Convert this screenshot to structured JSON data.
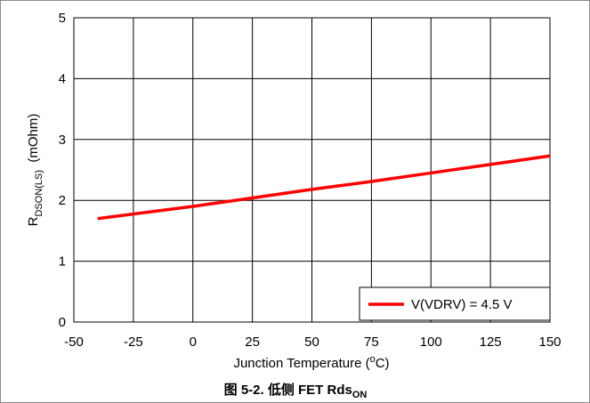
{
  "chart_data": {
    "type": "line",
    "title": "",
    "xlabel": "Junction Temperature (°C)",
    "xlabel_parts": {
      "before": "Junction Temperature (",
      "sup": "o",
      "after": "C)"
    },
    "ylabel": "R DSON(LS) (mOhm)",
    "ylabel_parts": {
      "main": "R",
      "sub": "DSON(LS)",
      "unit": "  (mOhm)"
    },
    "xlim": [
      -50,
      150
    ],
    "ylim": [
      0,
      5
    ],
    "x_ticks": [
      -50,
      -25,
      0,
      25,
      50,
      75,
      100,
      125,
      150
    ],
    "x_tick_labels": [
      "-50",
      "-25",
      "0",
      "25",
      "50",
      "75",
      "100",
      "125",
      "150"
    ],
    "y_ticks": [
      0,
      1,
      2,
      3,
      4,
      5
    ],
    "y_tick_labels": [
      "0",
      "1",
      "2",
      "3",
      "4",
      "5"
    ],
    "grid": true,
    "legend_position": "bottom-right",
    "series": [
      {
        "name": "V(VDRV) = 4.5 V",
        "color": "#ff0000",
        "x": [
          -40,
          0,
          25,
          50,
          75,
          100,
          125,
          150
        ],
        "y": [
          1.7,
          1.9,
          2.04,
          2.18,
          2.31,
          2.45,
          2.59,
          2.73
        ]
      }
    ]
  },
  "caption": {
    "prefix": "图 5-2. 低侧 FET Rds",
    "sub": "ON"
  }
}
